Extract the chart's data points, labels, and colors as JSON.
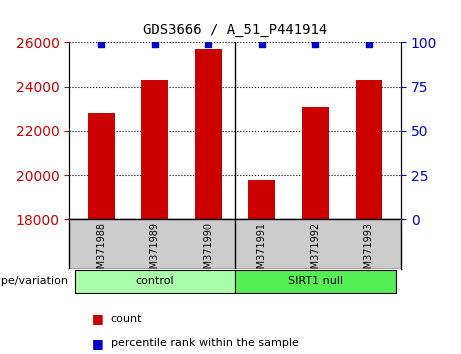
{
  "title": "GDS3666 / A_51_P441914",
  "samples": [
    "GSM371988",
    "GSM371989",
    "GSM371990",
    "GSM371991",
    "GSM371992",
    "GSM371993"
  ],
  "counts": [
    22800,
    24300,
    25700,
    19800,
    23100,
    24300
  ],
  "percentile_ranks": [
    99,
    99,
    99,
    99,
    99,
    99
  ],
  "ylim_left": [
    18000,
    26000
  ],
  "ylim_right": [
    0,
    100
  ],
  "yticks_left": [
    18000,
    20000,
    22000,
    24000,
    26000
  ],
  "yticks_right": [
    0,
    25,
    50,
    75,
    100
  ],
  "bar_color": "#cc0000",
  "dot_color": "#0000cc",
  "bar_width": 0.5,
  "groups": [
    {
      "label": "control",
      "indices": [
        0,
        1,
        2
      ],
      "color": "#aaffaa"
    },
    {
      "label": "SIRT1 null",
      "indices": [
        3,
        4,
        5
      ],
      "color": "#55ee55"
    }
  ],
  "group_label": "genotype/variation",
  "legend_count_label": "count",
  "legend_percentile_label": "percentile rank within the sample",
  "grid_color": "#000000",
  "ax_bg": "#ffffff",
  "tick_label_color_left": "#cc0000",
  "tick_label_color_right": "#0000cc",
  "xlabel_area_bg": "#cccccc"
}
